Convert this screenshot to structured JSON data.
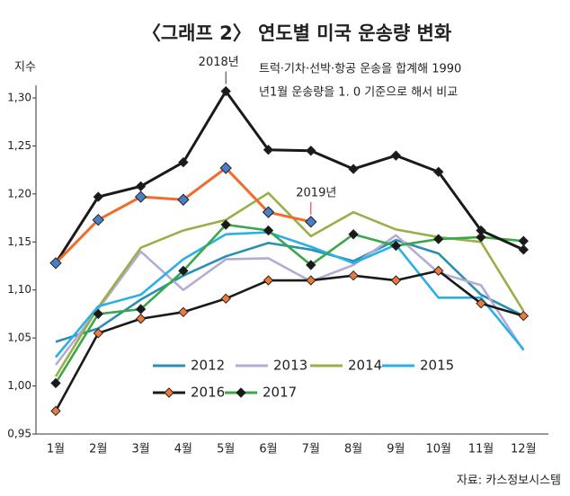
{
  "chart_data": {
    "type": "line",
    "title": "〈그래프 2〉 연도별 미국 운송량 변화",
    "y_label": "지수",
    "note": [
      "트럭·기차·선박·항공 운송을 합계해 1990",
      "년1월 운송량을 1. 0 기준으로 해서 비교"
    ],
    "source": "자료: 카스정보시스템",
    "categories": [
      "1월",
      "2월",
      "3월",
      "4월",
      "5월",
      "6월",
      "7월",
      "8월",
      "9월",
      "10월",
      "11월",
      "12월"
    ],
    "ylim": [
      0.95,
      1.32
    ],
    "yticks": [
      {
        "value": 0.95,
        "label": "0,95"
      },
      {
        "value": 1.0,
        "label": "1,00"
      },
      {
        "value": 1.05,
        "label": "1,05"
      },
      {
        "value": 1.1,
        "label": "1,10"
      },
      {
        "value": 1.15,
        "label": "1,15"
      },
      {
        "value": 1.2,
        "label": "1,20"
      },
      {
        "value": 1.25,
        "label": "1,25"
      },
      {
        "value": 1.3,
        "label": "1,30"
      }
    ],
    "series": [
      {
        "name": "2012",
        "color": "#2a8fb0",
        "values": [
          1.046,
          1.06,
          1.09,
          1.115,
          1.135,
          1.149,
          1.142,
          1.13,
          1.152,
          1.138,
          1.095,
          1.073
        ]
      },
      {
        "name": "2013",
        "color": "#b4acd4",
        "values": [
          1.022,
          1.08,
          1.14,
          1.1,
          1.132,
          1.133,
          1.109,
          1.126,
          1.157,
          1.118,
          1.105,
          1.037
        ]
      },
      {
        "name": "2014",
        "color": "#9aae4a",
        "values": [
          1.01,
          1.082,
          1.144,
          1.162,
          1.173,
          1.201,
          1.156,
          1.181,
          1.163,
          1.155,
          1.15,
          1.078
        ]
      },
      {
        "name": "2015",
        "color": "#2ab0e6",
        "values": [
          1.03,
          1.083,
          1.095,
          1.132,
          1.158,
          1.16,
          1.145,
          1.128,
          1.147,
          1.092,
          1.092,
          1.038
        ]
      },
      {
        "name": "2016",
        "color": "#1a1a1a",
        "marker_color": "#f07a3a",
        "values": [
          0.974,
          1.055,
          1.07,
          1.077,
          1.091,
          1.11,
          1.11,
          1.115,
          1.11,
          1.12,
          1.086,
          1.073
        ]
      },
      {
        "name": "2017",
        "color": "#3aa84a",
        "marker_color": "#1a1a1a",
        "values": [
          1.003,
          1.075,
          1.08,
          1.12,
          1.168,
          1.162,
          1.126,
          1.158,
          1.146,
          1.153,
          1.155,
          1.151
        ]
      },
      {
        "name": "2018년",
        "color": "#1a1a1a",
        "marker_color": "#1a1a1a",
        "annotated": true,
        "values": [
          1.128,
          1.197,
          1.208,
          1.233,
          1.307,
          1.246,
          1.245,
          1.226,
          1.24,
          1.223,
          1.162,
          1.142
        ]
      },
      {
        "name": "2019년",
        "color": "#f26b2a",
        "marker_color": "#4a7fc8",
        "annotated": true,
        "values": [
          1.128,
          1.173,
          1.197,
          1.194,
          1.227,
          1.181,
          1.171,
          null,
          null,
          null,
          null,
          null
        ]
      }
    ]
  }
}
